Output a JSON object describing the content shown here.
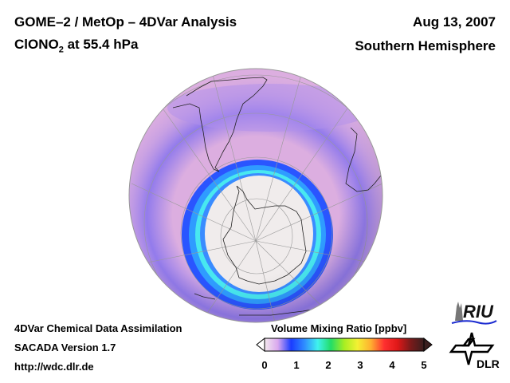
{
  "header": {
    "title_line1": "GOME–2 / MetOp – 4DVar Analysis",
    "species_prefix": "ClONO",
    "species_subscript": "2",
    "species_suffix": " at 55.4 hPa",
    "date": "Aug 13, 2007",
    "region": "Southern Hemisphere"
  },
  "footer": {
    "line1": "4DVar Chemical Data Assimilation",
    "line2": "SACADA Version 1.7",
    "line3": "http://wdc.dlr.de"
  },
  "colorbar": {
    "title": "Volume Mixing Ratio [ppbv]",
    "ticks": [
      "0",
      "1",
      "2",
      "3",
      "4",
      "5"
    ],
    "range": [
      0,
      5
    ],
    "colors": [
      "#f3e9ee",
      "#d9a8ee",
      "#1a3cff",
      "#2f8cff",
      "#3ff2ee",
      "#22dd66",
      "#a8ee22",
      "#f4f033",
      "#ffb030",
      "#ff3030",
      "#e01818",
      "#7a1a1a",
      "#3a1f1f"
    ]
  },
  "logos": {
    "riu": "RIU",
    "dlr": "DLR"
  }
}
